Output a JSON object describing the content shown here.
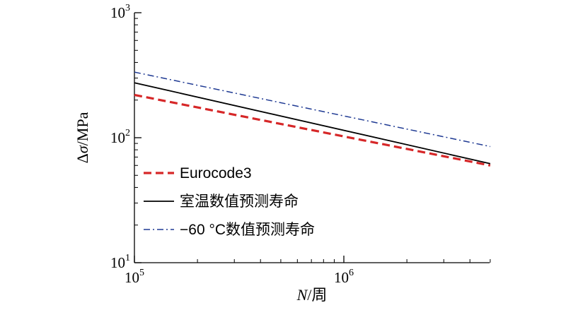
{
  "chart_data": {
    "type": "line",
    "x_scale": "log",
    "y_scale": "log",
    "xlim": [
      100000,
      5000000
    ],
    "ylim": [
      10,
      1000
    ],
    "grid": false,
    "legend_placement": "bottom-left",
    "xlabel": {
      "italic": "N",
      "rest": "/周"
    },
    "ylabel": {
      "prefix": "Δ",
      "italic": "σ",
      "rest": "/MPa"
    },
    "x_ticks": [
      {
        "value": 100000,
        "base": "10",
        "exp": "5"
      },
      {
        "value": 1000000,
        "base": "10",
        "exp": "6"
      }
    ],
    "y_ticks": [
      {
        "value": 10,
        "base": "10",
        "exp": "1"
      },
      {
        "value": 100,
        "base": "10",
        "exp": "2"
      },
      {
        "value": 1000,
        "base": "10",
        "exp": "3"
      }
    ],
    "series": [
      {
        "name": "Eurocode3",
        "color": "#d62728",
        "style": "dashed",
        "x": [
          100000,
          5000000
        ],
        "y": [
          220,
          60
        ]
      },
      {
        "name": "室温数值预测寿命",
        "color": "#000000",
        "style": "solid",
        "x": [
          100000,
          5000000
        ],
        "y": [
          275,
          62
        ]
      },
      {
        "name": "−60 °C数值预测寿命",
        "color": "#1f3a93",
        "style": "dashdot",
        "x": [
          100000,
          5000000
        ],
        "y": [
          335,
          85
        ]
      }
    ]
  }
}
